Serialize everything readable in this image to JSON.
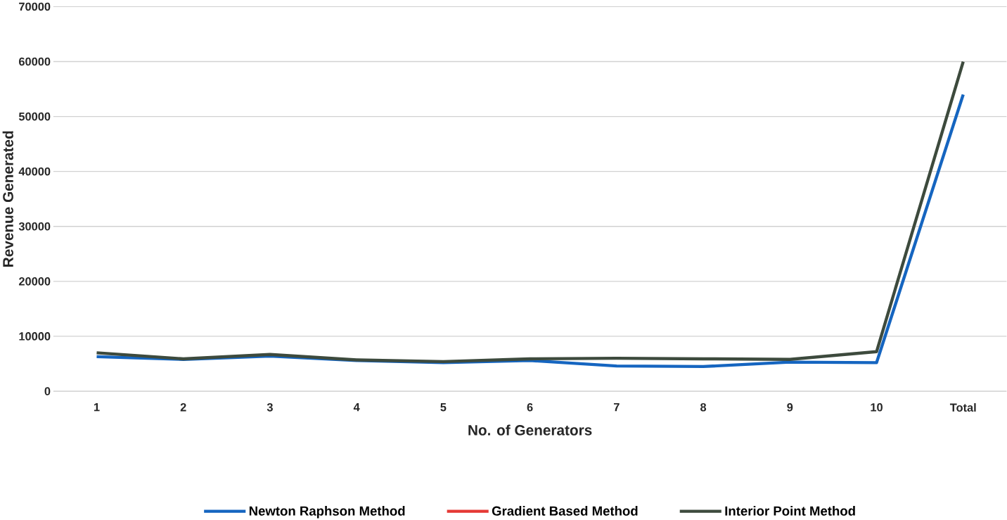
{
  "chart_data": {
    "type": "line",
    "xlabel": "No. of Generators",
    "ylabel": "Revenue Generated",
    "categories": [
      "1",
      "2",
      "3",
      "4",
      "5",
      "6",
      "7",
      "8",
      "9",
      "10",
      "Total"
    ],
    "series": [
      {
        "name": "Newton Raphson Method",
        "color": "#1565c0",
        "values": [
          6300,
          5800,
          6400,
          5600,
          5200,
          5600,
          4600,
          4500,
          5300,
          5200,
          54000
        ]
      },
      {
        "name": "Gradient Based Method",
        "color": "#e53935",
        "values": [
          null,
          null,
          null,
          null,
          null,
          null,
          null,
          null,
          null,
          null,
          null
        ]
      },
      {
        "name": "Interior Point Method",
        "color": "#3d4a3d",
        "values": [
          7000,
          5900,
          6700,
          5700,
          5400,
          5900,
          6000,
          5900,
          5800,
          7200,
          60000
        ]
      }
    ],
    "ylim": [
      0,
      70000
    ],
    "yticks": [
      0,
      10000,
      20000,
      30000,
      40000,
      50000,
      60000,
      70000
    ],
    "grid": "y",
    "legend": "bottom",
    "marker": "none",
    "line_style": "solid"
  }
}
